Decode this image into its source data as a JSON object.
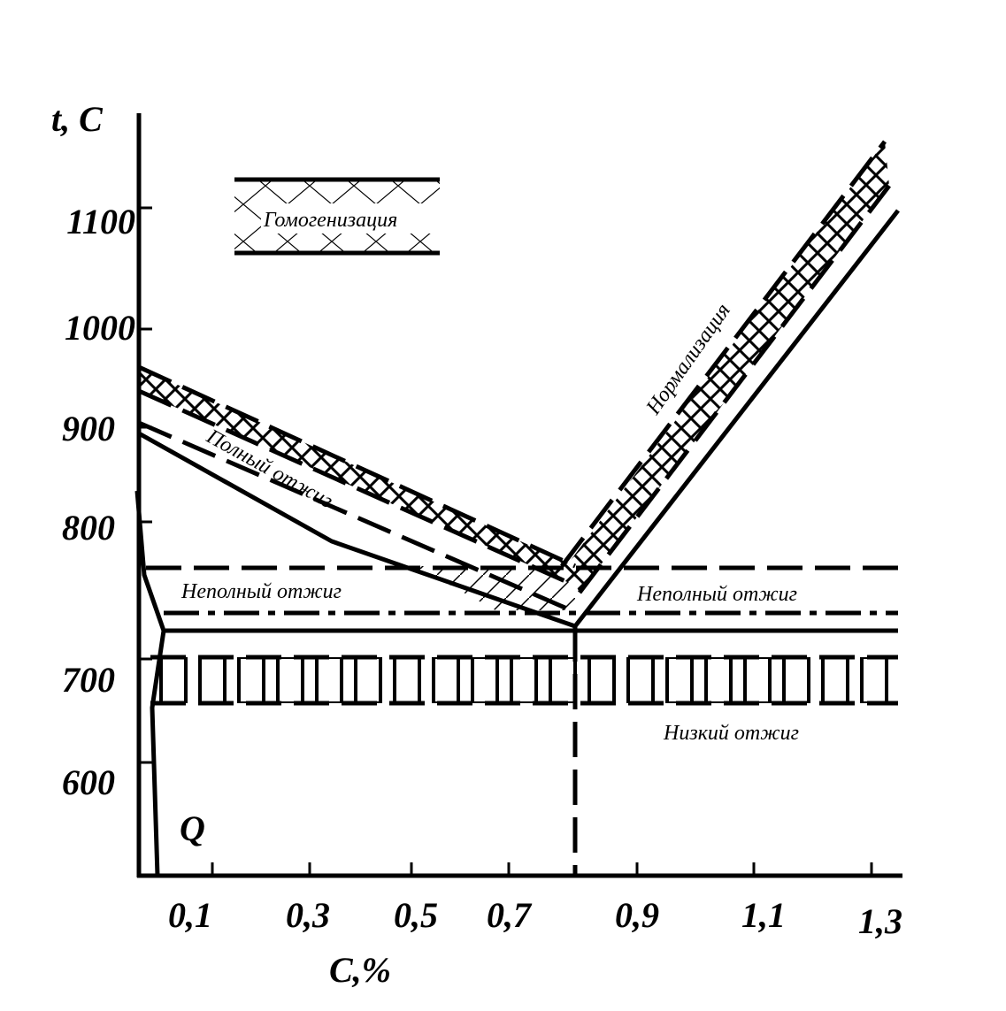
{
  "axes": {
    "y_label": "t, C",
    "x_label": "C,%",
    "y_ticks": [
      "1100",
      "1000",
      "900",
      "800",
      "700",
      "600"
    ],
    "x_ticks": [
      "0,1",
      "0,3",
      "0,5",
      "0,7",
      "0,9",
      "1,1",
      "1,3"
    ]
  },
  "regions": {
    "homogenization": "Гомогенизация",
    "normalization": "Нормализация",
    "full_annealing": "Полный отжиг",
    "partial_annealing_left": "Неполный отжиг",
    "partial_annealing_right": "Неполный отжиг",
    "low_annealing": "Низкий отжиг",
    "point_q": "Q"
  }
}
